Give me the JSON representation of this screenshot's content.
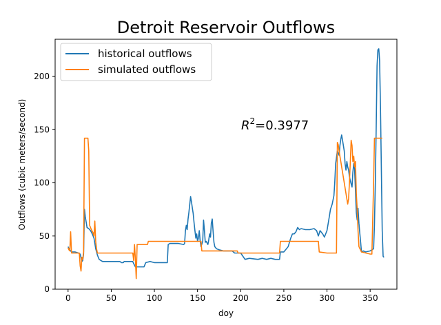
{
  "chart_data": {
    "type": "line",
    "title": "Detroit Reservoir Outflows",
    "xlabel": "doy",
    "ylabel": "Outflows (cubic meters/second)",
    "xlim": [
      -15,
      381
    ],
    "ylim": [
      0,
      235
    ],
    "xticks": [
      0,
      50,
      100,
      150,
      200,
      250,
      300,
      350
    ],
    "yticks": [
      0,
      50,
      100,
      150,
      200
    ],
    "grid": false,
    "legend_position": "top-left",
    "annotation": {
      "prefix": "R",
      "superscript": "2",
      "text": "=0.3977",
      "x": 200,
      "y": 151
    },
    "series": [
      {
        "name": "historical outflows",
        "color": "#1f77b4",
        "points": [
          [
            0,
            40
          ],
          [
            1,
            38
          ],
          [
            2,
            37
          ],
          [
            3,
            36
          ],
          [
            4,
            35
          ],
          [
            8,
            35
          ],
          [
            12,
            34
          ],
          [
            14,
            33
          ],
          [
            15,
            30
          ],
          [
            16,
            26
          ],
          [
            17,
            27
          ],
          [
            18,
            33
          ],
          [
            19,
            75
          ],
          [
            20,
            68
          ],
          [
            21,
            63
          ],
          [
            22,
            58
          ],
          [
            24,
            57
          ],
          [
            26,
            55
          ],
          [
            28,
            52
          ],
          [
            30,
            48
          ],
          [
            32,
            38
          ],
          [
            34,
            32
          ],
          [
            36,
            28
          ],
          [
            38,
            27
          ],
          [
            40,
            26
          ],
          [
            50,
            26
          ],
          [
            55,
            26
          ],
          [
            60,
            26
          ],
          [
            62,
            25
          ],
          [
            64,
            25
          ],
          [
            65,
            26
          ],
          [
            70,
            26
          ],
          [
            75,
            26
          ],
          [
            76,
            24
          ],
          [
            78,
            21
          ],
          [
            85,
            21
          ],
          [
            88,
            21
          ],
          [
            90,
            25
          ],
          [
            95,
            26
          ],
          [
            100,
            25
          ],
          [
            105,
            25
          ],
          [
            115,
            25
          ],
          [
            116,
            42
          ],
          [
            118,
            43
          ],
          [
            128,
            43
          ],
          [
            134,
            42
          ],
          [
            135,
            43
          ],
          [
            136,
            55
          ],
          [
            137,
            60
          ],
          [
            138,
            56
          ],
          [
            139,
            66
          ],
          [
            140,
            72
          ],
          [
            141,
            80
          ],
          [
            142,
            87
          ],
          [
            143,
            82
          ],
          [
            144,
            76
          ],
          [
            145,
            71
          ],
          [
            146,
            62
          ],
          [
            147,
            55
          ],
          [
            148,
            48
          ],
          [
            149,
            52
          ],
          [
            150,
            45
          ],
          [
            151,
            48
          ],
          [
            152,
            55
          ],
          [
            153,
            46
          ],
          [
            154,
            40
          ],
          [
            156,
            45
          ],
          [
            157,
            65
          ],
          [
            158,
            55
          ],
          [
            159,
            44
          ],
          [
            160,
            45
          ],
          [
            162,
            42
          ],
          [
            163,
            46
          ],
          [
            164,
            52
          ],
          [
            165,
            49
          ],
          [
            166,
            62
          ],
          [
            167,
            66
          ],
          [
            168,
            55
          ],
          [
            169,
            44
          ],
          [
            170,
            40
          ],
          [
            172,
            38
          ],
          [
            175,
            37
          ],
          [
            180,
            36
          ],
          [
            185,
            36
          ],
          [
            190,
            36
          ],
          [
            193,
            34
          ],
          [
            196,
            34
          ],
          [
            200,
            34
          ],
          [
            205,
            28
          ],
          [
            210,
            29
          ],
          [
            220,
            28
          ],
          [
            225,
            29
          ],
          [
            230,
            28
          ],
          [
            235,
            29
          ],
          [
            240,
            28
          ],
          [
            245,
            28
          ],
          [
            246,
            35
          ],
          [
            250,
            35
          ],
          [
            255,
            40
          ],
          [
            258,
            48
          ],
          [
            260,
            52
          ],
          [
            262,
            52
          ],
          [
            264,
            54
          ],
          [
            266,
            58
          ],
          [
            268,
            56
          ],
          [
            270,
            57
          ],
          [
            275,
            56
          ],
          [
            280,
            56
          ],
          [
            285,
            57
          ],
          [
            288,
            55
          ],
          [
            290,
            50
          ],
          [
            292,
            55
          ],
          [
            294,
            53
          ],
          [
            295,
            52
          ],
          [
            297,
            49
          ],
          [
            300,
            55
          ],
          [
            302,
            65
          ],
          [
            304,
            75
          ],
          [
            306,
            80
          ],
          [
            308,
            88
          ],
          [
            309,
            100
          ],
          [
            310,
            118
          ],
          [
            312,
            130
          ],
          [
            313,
            128
          ],
          [
            314,
            126
          ],
          [
            315,
            135
          ],
          [
            316,
            141
          ],
          [
            317,
            145
          ],
          [
            318,
            140
          ],
          [
            320,
            130
          ],
          [
            321,
            118
          ],
          [
            322,
            112
          ],
          [
            323,
            120
          ],
          [
            324,
            115
          ],
          [
            325,
            112
          ],
          [
            326,
            106
          ],
          [
            327,
            102
          ],
          [
            328,
            99
          ],
          [
            329,
            96
          ],
          [
            330,
            110
          ],
          [
            331,
            118
          ],
          [
            332,
            113
          ],
          [
            333,
            92
          ],
          [
            334,
            72
          ],
          [
            335,
            65
          ],
          [
            336,
            76
          ],
          [
            337,
            62
          ],
          [
            338,
            53
          ],
          [
            339,
            44
          ],
          [
            340,
            35
          ],
          [
            342,
            36
          ],
          [
            345,
            35
          ],
          [
            350,
            36
          ],
          [
            352,
            37
          ],
          [
            354,
            38
          ],
          [
            355,
            60
          ],
          [
            356,
            100
          ],
          [
            357,
            150
          ],
          [
            358,
            210
          ],
          [
            359,
            225
          ],
          [
            360,
            226
          ],
          [
            361,
            215
          ],
          [
            362,
            170
          ],
          [
            363,
            110
          ],
          [
            364,
            55
          ],
          [
            365,
            31
          ],
          [
            366,
            30
          ]
        ]
      },
      {
        "name": "simulated outflows",
        "color": "#ff7f0e",
        "points": [
          [
            0,
            39
          ],
          [
            1,
            37
          ],
          [
            2,
            36
          ],
          [
            3,
            54
          ],
          [
            4,
            34
          ],
          [
            13,
            34
          ],
          [
            14,
            22
          ],
          [
            15,
            17
          ],
          [
            16,
            30
          ],
          [
            17,
            28
          ],
          [
            18,
            35
          ],
          [
            19,
            142
          ],
          [
            22,
            142
          ],
          [
            23,
            142
          ],
          [
            24,
            130
          ],
          [
            25,
            60
          ],
          [
            27,
            56
          ],
          [
            29,
            53
          ],
          [
            30,
            50
          ],
          [
            31,
            64
          ],
          [
            32,
            45
          ],
          [
            33,
            38
          ],
          [
            34,
            34
          ],
          [
            60,
            34
          ],
          [
            75,
            34
          ],
          [
            76,
            27
          ],
          [
            77,
            42
          ],
          [
            78,
            28
          ],
          [
            79,
            10
          ],
          [
            80,
            42
          ],
          [
            92,
            42
          ],
          [
            93,
            45
          ],
          [
            150,
            45
          ],
          [
            154,
            45
          ],
          [
            155,
            36
          ],
          [
            185,
            36
          ],
          [
            196,
            36
          ],
          [
            197,
            34
          ],
          [
            245,
            34
          ],
          [
            246,
            45
          ],
          [
            290,
            45
          ],
          [
            291,
            35
          ],
          [
            300,
            34
          ],
          [
            310,
            34
          ],
          [
            311,
            34
          ],
          [
            312,
            138
          ],
          [
            313,
            136
          ],
          [
            314,
            130
          ],
          [
            315,
            125
          ],
          [
            316,
            120
          ],
          [
            318,
            110
          ],
          [
            320,
            100
          ],
          [
            322,
            90
          ],
          [
            324,
            80
          ],
          [
            325,
            85
          ],
          [
            326,
            100
          ],
          [
            327,
            120
          ],
          [
            328,
            140
          ],
          [
            329,
            135
          ],
          [
            330,
            120
          ],
          [
            331,
            125
          ],
          [
            332,
            115
          ],
          [
            333,
            120
          ],
          [
            334,
            90
          ],
          [
            335,
            75
          ],
          [
            336,
            55
          ],
          [
            337,
            40
          ],
          [
            340,
            35
          ],
          [
            350,
            33
          ],
          [
            352,
            33
          ],
          [
            354,
            100
          ],
          [
            355,
            142
          ],
          [
            364,
            142
          ]
        ]
      }
    ]
  }
}
